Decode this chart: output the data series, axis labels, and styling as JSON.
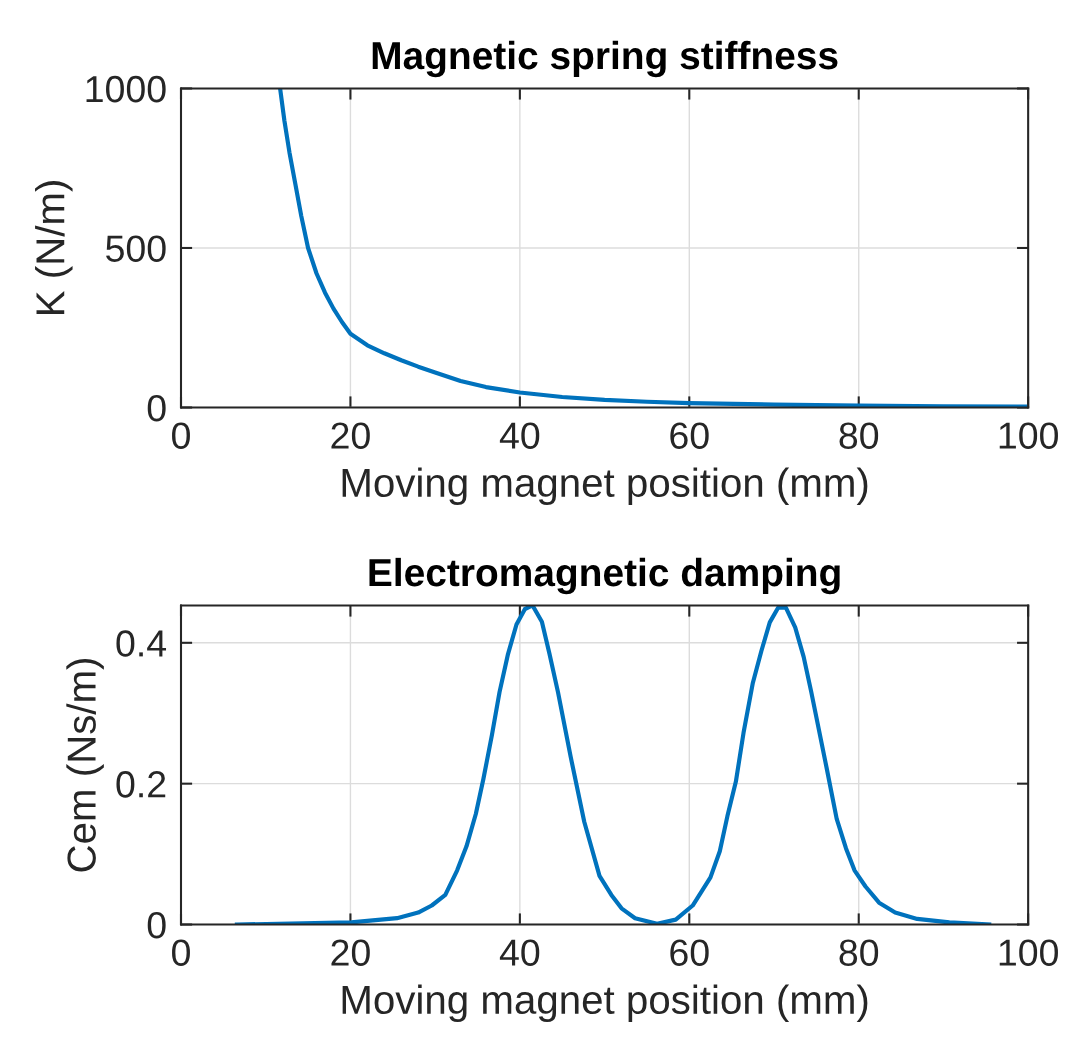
{
  "chart_data": [
    {
      "type": "line",
      "title": "Magnetic spring stiffness",
      "xlabel": "Moving magnet position (mm)",
      "ylabel": "K (N/m)",
      "x": [
        11.7,
        12.2,
        12.8,
        13.5,
        14.2,
        15,
        16,
        17,
        18,
        19,
        20,
        22,
        24,
        26,
        28,
        30,
        33,
        36,
        40,
        45,
        50,
        55,
        60,
        70,
        80,
        90,
        100
      ],
      "series": [
        {
          "color": "#0072bd",
          "values": [
            1000,
            900,
            800,
            700,
            600,
            500,
            420,
            360,
            310,
            268,
            231,
            195,
            170,
            148,
            128,
            110,
            83,
            64,
            47,
            33,
            24,
            18,
            14,
            9,
            6,
            4,
            3
          ]
        }
      ],
      "xlim": [
        0,
        100
      ],
      "ylim": [
        0,
        1000
      ],
      "xticks": [
        0,
        20,
        40,
        60,
        80,
        100
      ],
      "yticks": [
        0,
        500,
        1000
      ],
      "grid": true,
      "marker": "none",
      "line_style": "solid"
    },
    {
      "type": "line",
      "title": "Electromagnetic damping",
      "xlabel": "Moving magnet position (mm)",
      "ylabel": "Cem (Ns/m)",
      "x": [
        6.6,
        20.1,
        25.5,
        28.0,
        29.6,
        31.2,
        32.6,
        33.7,
        34.8,
        35.7,
        36.7,
        37.6,
        38.6,
        39.6,
        40.6,
        41.5,
        42.6,
        43.5,
        44.5,
        46.0,
        47.6,
        49.4,
        50.8,
        52.0,
        53.6,
        56.2,
        58.4,
        60.4,
        62.5,
        63.6,
        64.5,
        65.5,
        66.4,
        67.5,
        68.5,
        69.5,
        70.5,
        71.4,
        72.5,
        73.5,
        74.4,
        76.2,
        77.4,
        78.5,
        79.5,
        80.8,
        82.4,
        84.3,
        86.9,
        90.7,
        95.4
      ],
      "series": [
        {
          "color": "#0072bd",
          "values": [
            0,
            0.003,
            0.009,
            0.017,
            0.027,
            0.042,
            0.077,
            0.111,
            0.157,
            0.207,
            0.269,
            0.33,
            0.384,
            0.426,
            0.448,
            0.453,
            0.43,
            0.384,
            0.33,
            0.238,
            0.146,
            0.069,
            0.042,
            0.023,
            0.009,
            0.001,
            0.007,
            0.027,
            0.067,
            0.104,
            0.154,
            0.203,
            0.272,
            0.343,
            0.388,
            0.429,
            0.45,
            0.45,
            0.422,
            0.38,
            0.33,
            0.223,
            0.15,
            0.108,
            0.077,
            0.054,
            0.031,
            0.017,
            0.008,
            0.003,
            0
          ]
        }
      ],
      "xlim": [
        0,
        100
      ],
      "ylim": [
        0,
        0.453
      ],
      "xticks": [
        0,
        20,
        40,
        60,
        80,
        100
      ],
      "yticks": [
        0,
        0.2,
        0.4
      ],
      "grid": true,
      "marker": "none",
      "line_style": "solid"
    }
  ]
}
